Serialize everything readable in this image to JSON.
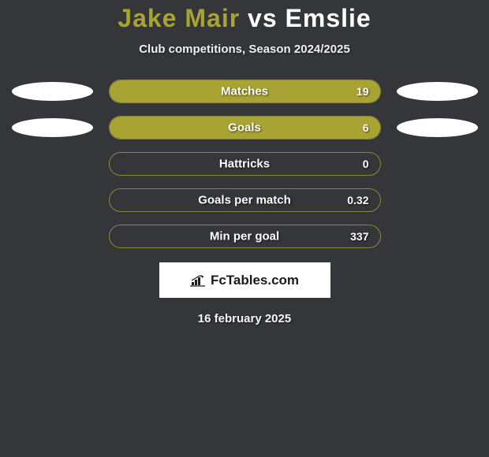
{
  "title": {
    "player1": "Jake Mair",
    "vs": "vs",
    "player2": "Emslie"
  },
  "subtitle": "Club competitions, Season 2024/2025",
  "stats": [
    {
      "label": "Matches",
      "value": "19",
      "fill_percent": 100,
      "show_ellipses": true
    },
    {
      "label": "Goals",
      "value": "6",
      "fill_percent": 100,
      "show_ellipses": true
    },
    {
      "label": "Hattricks",
      "value": "0",
      "fill_percent": 0,
      "show_ellipses": false
    },
    {
      "label": "Goals per match",
      "value": "0.32",
      "fill_percent": 0,
      "show_ellipses": false
    },
    {
      "label": "Min per goal",
      "value": "337",
      "fill_percent": 0,
      "show_ellipses": false
    }
  ],
  "logo": {
    "text": "FcTables.com"
  },
  "date": "16 february 2025",
  "colors": {
    "background": "#35363a",
    "accent_olive": "#a8a333",
    "bar_border": "#8c8a3a",
    "white": "#ffffff",
    "logo_text": "#1a1a1a"
  }
}
